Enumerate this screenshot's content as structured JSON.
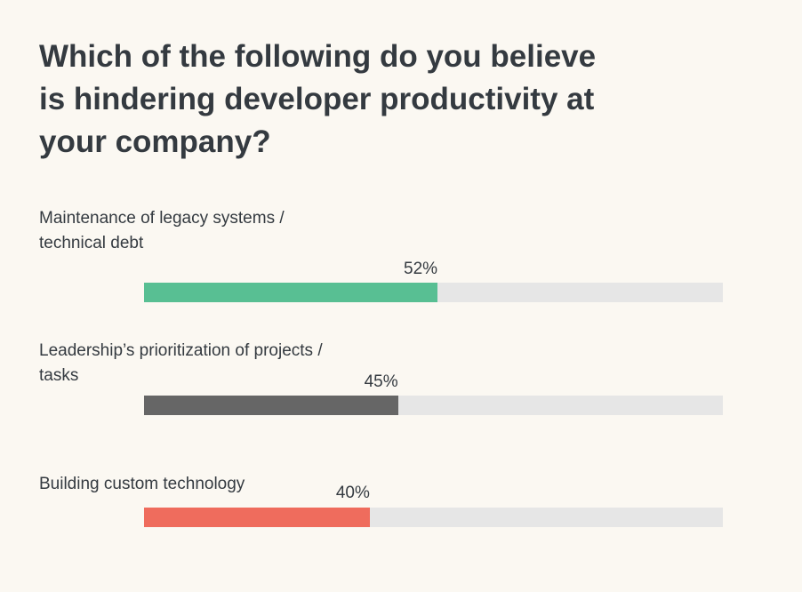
{
  "chart_data": {
    "type": "bar",
    "orientation": "horizontal",
    "title": "Which of the following do you believe is hindering developer productivity at your company?",
    "categories": [
      "Maintenance of legacy systems / technical debt",
      "Leadership’s prioritization of projects / tasks",
      "Building custom technology"
    ],
    "values": [
      52,
      45,
      40
    ],
    "value_labels": [
      "52%",
      "45%",
      "40%"
    ],
    "colors": [
      "#58bf93",
      "#666666",
      "#ef6c5d"
    ],
    "track_color": "#e6e6e6",
    "xlim": [
      0,
      100
    ]
  }
}
